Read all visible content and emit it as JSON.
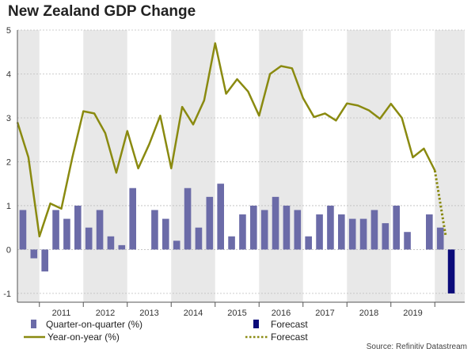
{
  "chart_data": {
    "type": "bar+line",
    "title": "New Zealand GDP Change",
    "source": "Source: Refinitiv Datastream",
    "ylim": [
      -1.2,
      5
    ],
    "yticks": [
      -1,
      0,
      1,
      2,
      3,
      4,
      5
    ],
    "year_labels": [
      "2011",
      "2012",
      "2013",
      "2014",
      "2015",
      "2016",
      "2017",
      "2018",
      "2019"
    ],
    "shaded_years": [
      "2010",
      "2012",
      "2014",
      "2016",
      "2018",
      "2020"
    ],
    "colors": {
      "bar": "#6b6ba8",
      "forecast_bar": "#0b0b7a",
      "line": "#8a8a10",
      "band": "#e8e8e8"
    },
    "legend": {
      "qoq": "Quarter-on-quarter (%)",
      "qoq_forecast": "Forecast",
      "yoy": "Year-on-year (%)",
      "yoy_forecast": "Forecast"
    },
    "quarters": [
      "2010Q3",
      "2010Q4",
      "2011Q1",
      "2011Q2",
      "2011Q3",
      "2011Q4",
      "2012Q1",
      "2012Q2",
      "2012Q3",
      "2012Q4",
      "2013Q1",
      "2013Q2",
      "2013Q3",
      "2013Q4",
      "2014Q1",
      "2014Q2",
      "2014Q3",
      "2014Q4",
      "2015Q1",
      "2015Q2",
      "2015Q3",
      "2015Q4",
      "2016Q1",
      "2016Q2",
      "2016Q3",
      "2016Q4",
      "2017Q1",
      "2017Q2",
      "2017Q3",
      "2017Q4",
      "2018Q1",
      "2018Q2",
      "2018Q3",
      "2018Q4",
      "2019Q1",
      "2019Q2",
      "2019Q3",
      "2019Q4",
      "2020Q1",
      "2020Q2"
    ],
    "series": [
      {
        "name": "Quarter-on-quarter (%)",
        "type": "bar",
        "values": [
          0.9,
          -0.2,
          -0.5,
          0.9,
          0.7,
          1.0,
          0.5,
          0.9,
          0.3,
          0.1,
          1.4,
          null,
          0.9,
          0.7,
          0.2,
          1.4,
          0.5,
          1.2,
          1.5,
          0.3,
          0.8,
          1.0,
          0.9,
          1.2,
          1.0,
          0.9,
          0.3,
          0.8,
          1.0,
          0.8,
          0.7,
          0.7,
          0.9,
          0.6,
          1.0,
          0.4,
          0.0,
          0.8,
          0.5,
          null
        ]
      },
      {
        "name": "Forecast",
        "type": "bar",
        "values": [
          null,
          null,
          null,
          null,
          null,
          null,
          null,
          null,
          null,
          null,
          null,
          null,
          null,
          null,
          null,
          null,
          null,
          null,
          null,
          null,
          null,
          null,
          null,
          null,
          null,
          null,
          null,
          null,
          null,
          null,
          null,
          null,
          null,
          null,
          null,
          null,
          null,
          null,
          null,
          -1.0
        ]
      },
      {
        "name": "Year-on-year (%)",
        "type": "line",
        "values": [
          2.9,
          2.1,
          0.3,
          1.05,
          0.93,
          2.1,
          3.15,
          3.1,
          2.65,
          1.75,
          2.7,
          1.85,
          2.4,
          3.05,
          1.85,
          3.25,
          2.85,
          3.4,
          4.7,
          3.55,
          3.88,
          3.6,
          3.05,
          4.0,
          4.18,
          4.13,
          3.45,
          3.02,
          3.1,
          2.94,
          3.33,
          3.28,
          3.17,
          2.98,
          3.32,
          3.0,
          2.1,
          2.3,
          1.8,
          null
        ]
      },
      {
        "name": "Forecast",
        "type": "line",
        "style": "dotted",
        "values": [
          null,
          null,
          null,
          null,
          null,
          null,
          null,
          null,
          null,
          null,
          null,
          null,
          null,
          null,
          null,
          null,
          null,
          null,
          null,
          null,
          null,
          null,
          null,
          null,
          null,
          null,
          null,
          null,
          null,
          null,
          null,
          null,
          null,
          null,
          null,
          null,
          null,
          null,
          1.8,
          0.3
        ]
      }
    ]
  }
}
